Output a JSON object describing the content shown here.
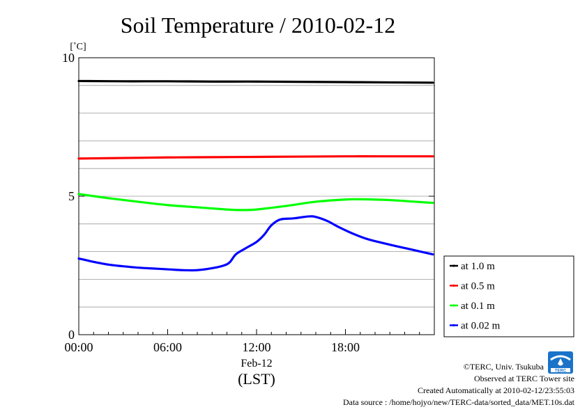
{
  "chart_data": {
    "type": "line",
    "title": "Soil Temperature / 2010-02-12",
    "ylabel": "[˚C]",
    "xlabel": "(LST)",
    "date_label": "Feb-12",
    "ylim": [
      0,
      10
    ],
    "yticks": [
      0,
      5,
      10
    ],
    "xlim": [
      0,
      24
    ],
    "xticks": [
      {
        "value": 0,
        "label": "00:00"
      },
      {
        "value": 6,
        "label": "06:00"
      },
      {
        "value": 12,
        "label": "12:00"
      },
      {
        "value": 18,
        "label": "18:00"
      }
    ],
    "grid": true,
    "legend_position": "right-bottom",
    "series": [
      {
        "name": "at 1.0 m",
        "color": "#000000",
        "points": [
          [
            0,
            9.16
          ],
          [
            3,
            9.15
          ],
          [
            6,
            9.15
          ],
          [
            9,
            9.14
          ],
          [
            12,
            9.14
          ],
          [
            15,
            9.13
          ],
          [
            18,
            9.12
          ],
          [
            21,
            9.11
          ],
          [
            23.9,
            9.1
          ]
        ]
      },
      {
        "name": "at 0.5 m",
        "color": "#ff0000",
        "points": [
          [
            0,
            6.36
          ],
          [
            3,
            6.38
          ],
          [
            6,
            6.4
          ],
          [
            9,
            6.41
          ],
          [
            12,
            6.42
          ],
          [
            15,
            6.43
          ],
          [
            18,
            6.44
          ],
          [
            21,
            6.44
          ],
          [
            23.9,
            6.44
          ]
        ]
      },
      {
        "name": "at 0.1 m",
        "color": "#00ff00",
        "points": [
          [
            0,
            5.08
          ],
          [
            2,
            4.93
          ],
          [
            4,
            4.8
          ],
          [
            6,
            4.68
          ],
          [
            8,
            4.6
          ],
          [
            10,
            4.52
          ],
          [
            11,
            4.5
          ],
          [
            12,
            4.52
          ],
          [
            14,
            4.65
          ],
          [
            16,
            4.8
          ],
          [
            18,
            4.88
          ],
          [
            19,
            4.89
          ],
          [
            21,
            4.86
          ],
          [
            23,
            4.79
          ],
          [
            23.9,
            4.76
          ]
        ]
      },
      {
        "name": "at 0.02 m",
        "color": "#0000ff",
        "points": [
          [
            0,
            2.75
          ],
          [
            1,
            2.63
          ],
          [
            2,
            2.53
          ],
          [
            3,
            2.47
          ],
          [
            4,
            2.42
          ],
          [
            5,
            2.39
          ],
          [
            6,
            2.36
          ],
          [
            7,
            2.33
          ],
          [
            8,
            2.33
          ],
          [
            9,
            2.4
          ],
          [
            9.8,
            2.5
          ],
          [
            10.2,
            2.62
          ],
          [
            10.6,
            2.9
          ],
          [
            11.2,
            3.1
          ],
          [
            12,
            3.35
          ],
          [
            12.5,
            3.6
          ],
          [
            13,
            3.95
          ],
          [
            13.6,
            4.16
          ],
          [
            14.5,
            4.2
          ],
          [
            15.5,
            4.27
          ],
          [
            16,
            4.25
          ],
          [
            16.8,
            4.1
          ],
          [
            17.5,
            3.9
          ],
          [
            18.5,
            3.65
          ],
          [
            19.5,
            3.45
          ],
          [
            21,
            3.25
          ],
          [
            22.5,
            3.07
          ],
          [
            23.9,
            2.9
          ]
        ]
      }
    ]
  },
  "credits": {
    "copyright": "©TERC, Univ. Tsukuba",
    "observed": "Observed at TERC Tower site",
    "created": "Created Automatically at 2010-02-12/23:55:03",
    "source": "Data source : /home/hojyo/new/TERC-data/sorted_data/MET.10s.dat",
    "logo_text": "TERC"
  }
}
